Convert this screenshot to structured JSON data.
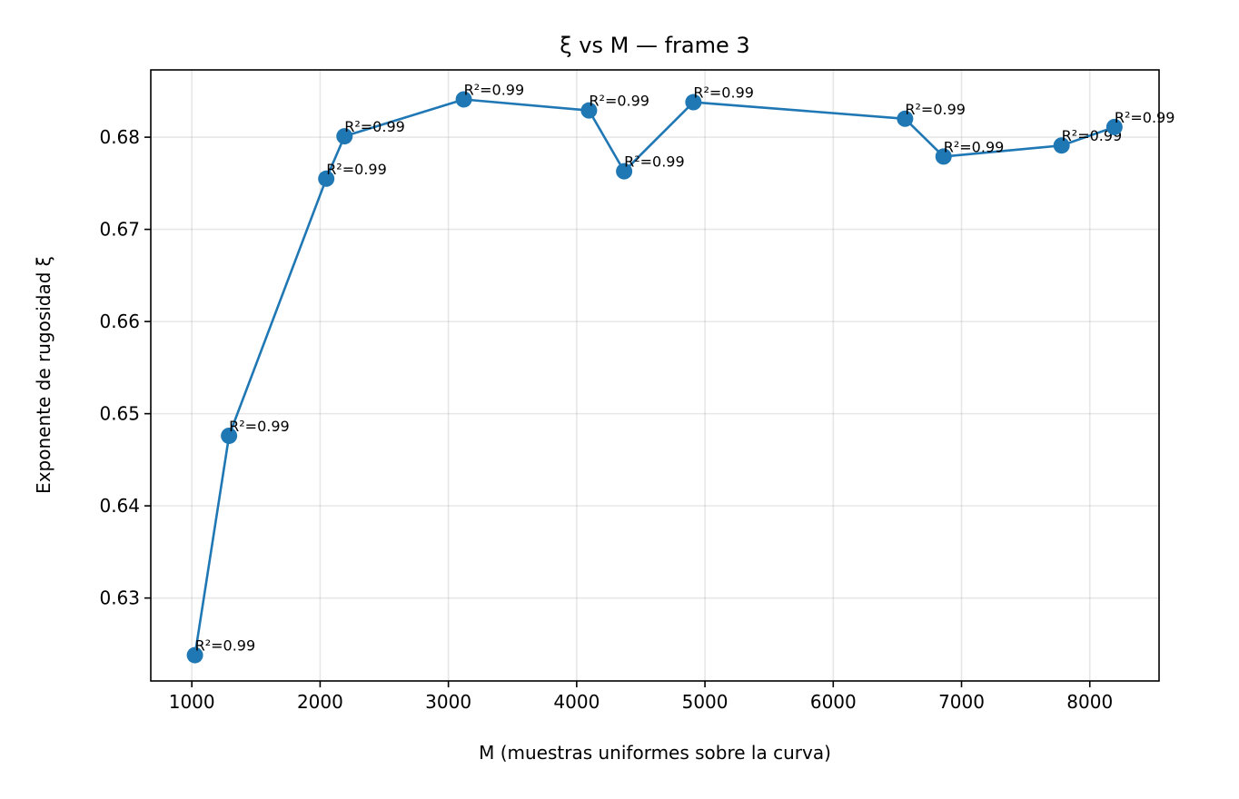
{
  "chart_data": {
    "type": "line",
    "title": "ξ vs M — frame 3",
    "xlabel": "M (muestras uniformes sobre la curva)",
    "ylabel": "Exponente de rugosidad ξ",
    "xlim": [
      680,
      8540
    ],
    "ylim": [
      0.621,
      0.6873
    ],
    "xticks": [
      1000,
      2000,
      3000,
      4000,
      5000,
      6000,
      7000,
      8000
    ],
    "yticks": [
      0.63,
      0.64,
      0.65,
      0.66,
      0.67,
      0.68
    ],
    "xtick_labels": [
      "1000",
      "2000",
      "3000",
      "4000",
      "5000",
      "6000",
      "7000",
      "8000"
    ],
    "ytick_labels": [
      "0.63",
      "0.64",
      "0.65",
      "0.66",
      "0.67",
      "0.68"
    ],
    "grid": true,
    "color": "#1f77b4",
    "series": [
      {
        "x": [
          1024,
          1290,
          2048,
          2190,
          3120,
          4096,
          4370,
          4910,
          6560,
          6860,
          7780,
          8192
        ],
        "y": [
          0.6238,
          0.6476,
          0.6755,
          0.6801,
          0.6841,
          0.6829,
          0.6763,
          0.6838,
          0.682,
          0.6779,
          0.6791,
          0.6811
        ],
        "labels": [
          "R²=0.99",
          "R²=0.99",
          "R²=0.99",
          "R²=0.99",
          "R²=0.99",
          "R²=0.99",
          "R²=0.99",
          "R²=0.99",
          "R²=0.99",
          "R²=0.99",
          "R²=0.99",
          "R²=0.99"
        ]
      }
    ]
  }
}
